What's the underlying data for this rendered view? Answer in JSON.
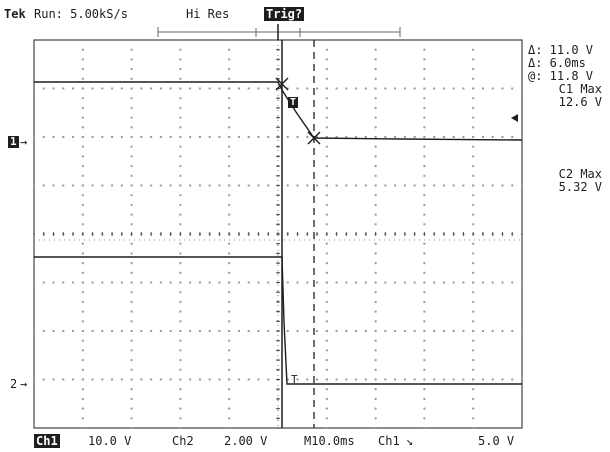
{
  "header": {
    "brand": "Tek",
    "run_status": "Run: 5.00kS/s",
    "acq_mode": "Hi Res",
    "trigger_status": "Trig?"
  },
  "markers": {
    "ch1_marker": "1",
    "ch2_marker": "2",
    "trigger_marker": "T"
  },
  "cursor_readout": {
    "delta_v": "Δ: 11.0 V",
    "delta_t": "Δ: 6.0ms",
    "at_v": "@: 11.8 V"
  },
  "measurements": {
    "c1_label": "C1 Max",
    "c1_value": "12.6 V",
    "c2_label": "C2 Max",
    "c2_value": "5.32 V"
  },
  "footer": {
    "ch1_label": "Ch1",
    "ch1_scale": "10.0 V",
    "ch2_label": "Ch2",
    "ch2_scale": "2.00 V",
    "timebase": "M10.0ms",
    "trig_source": "Ch1",
    "trig_slope_symbol": "↘",
    "trig_level": "5.0 V"
  },
  "colors": {
    "background": "#ffffff",
    "trace": "#1e1e1e",
    "graticule": "#9a9a9a"
  }
}
